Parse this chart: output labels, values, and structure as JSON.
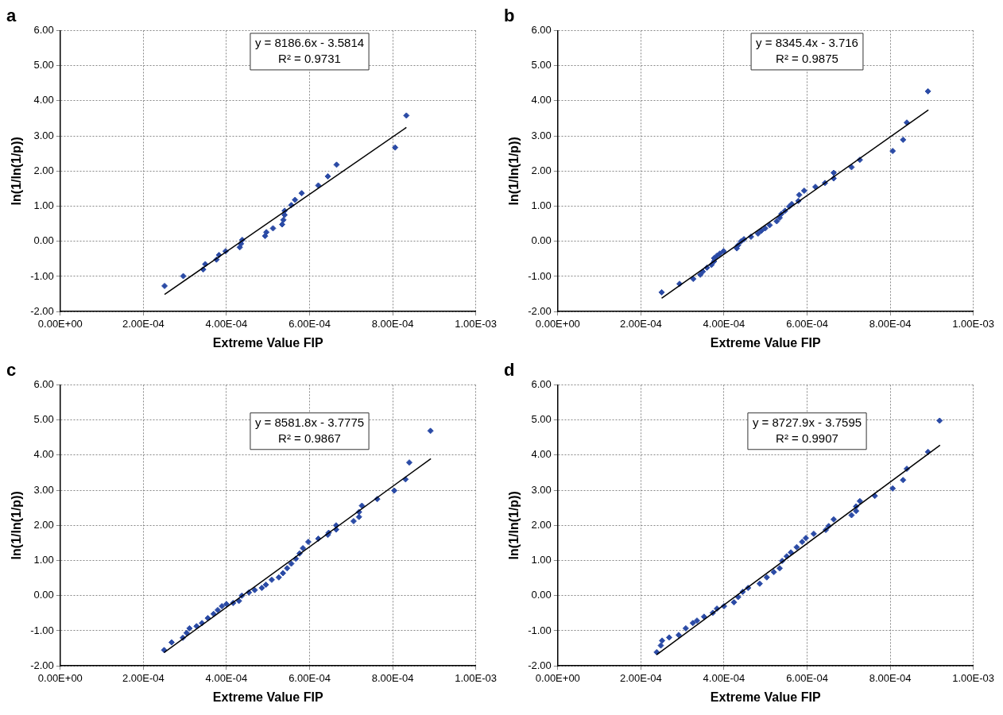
{
  "chart_data": [
    {
      "type": "scatter",
      "title": "a",
      "xlabel": "Extreme Value FIP",
      "ylabel": "ln(1/ln(1/p))",
      "annotations": [
        "y = 8186.6x - 3.5814",
        "R² = 0.9731"
      ],
      "xlim": [
        0,
        0.001
      ],
      "ylim": [
        -2,
        6
      ],
      "xticks": [
        {
          "value": 0,
          "label": "0.00E+00"
        },
        {
          "value": 0.0002,
          "label": "2.00E-04"
        },
        {
          "value": 0.0004,
          "label": "4.00E-04"
        },
        {
          "value": 0.0006,
          "label": "6.00E-04"
        },
        {
          "value": 0.0008,
          "label": "8.00E-04"
        },
        {
          "value": 0.001,
          "label": "1.00E-03"
        }
      ],
      "yticks": [
        {
          "value": -2,
          "label": "-2.00"
        },
        {
          "value": -1,
          "label": "-1.00"
        },
        {
          "value": 0,
          "label": "0.00"
        },
        {
          "value": 1,
          "label": "1.00"
        },
        {
          "value": 2,
          "label": "2.00"
        },
        {
          "value": 3,
          "label": "3.00"
        },
        {
          "value": 4,
          "label": "4.00"
        },
        {
          "value": 5,
          "label": "5.00"
        },
        {
          "value": 6,
          "label": "6.00"
        }
      ],
      "grid": true,
      "legend": false,
      "marker": "diamond",
      "series": [
        {
          "type": "scatter",
          "color": "#2b4ba6",
          "x": [
            0.000251,
            0.000296,
            0.000344,
            0.000349,
            0.000376,
            0.000382,
            0.000398,
            0.000432,
            0.000435,
            0.000438,
            0.000493,
            0.000496,
            0.000512,
            0.000534,
            0.000537,
            0.00054,
            0.00054,
            0.000556,
            0.000565,
            0.000581,
            0.000621,
            0.000644,
            0.000665,
            0.000806,
            0.000833
          ],
          "values": [
            -1.27,
            -0.99,
            -0.8,
            -0.65,
            -0.52,
            -0.39,
            -0.28,
            -0.17,
            -0.07,
            0.04,
            0.15,
            0.26,
            0.37,
            0.48,
            0.61,
            0.75,
            0.87,
            1.03,
            1.18,
            1.37,
            1.59,
            1.85,
            2.18,
            2.67,
            3.58
          ]
        },
        {
          "type": "line",
          "color": "#000000",
          "marker": "none",
          "x": [
            0.000251,
            0.000833
          ],
          "values": [
            -1.51,
            3.24
          ]
        }
      ]
    },
    {
      "type": "scatter",
      "title": "b",
      "xlabel": "Extreme Value FIP",
      "ylabel": "ln(1/ln(1/p))",
      "annotations": [
        "y = 8345.4x - 3.716",
        "R² = 0.9875"
      ],
      "xlim": [
        0,
        0.001
      ],
      "ylim": [
        -2,
        6
      ],
      "xticks": [
        {
          "value": 0,
          "label": "0.00E+00"
        },
        {
          "value": 0.0002,
          "label": "2.00E-04"
        },
        {
          "value": 0.0004,
          "label": "4.00E-04"
        },
        {
          "value": 0.0006,
          "label": "6.00E-04"
        },
        {
          "value": 0.0008,
          "label": "8.00E-04"
        },
        {
          "value": 0.001,
          "label": "1.00E-03"
        }
      ],
      "yticks": [
        {
          "value": -2,
          "label": "-2.00"
        },
        {
          "value": -1,
          "label": "-1.00"
        },
        {
          "value": 0,
          "label": "0.00"
        },
        {
          "value": 1,
          "label": "1.00"
        },
        {
          "value": 2,
          "label": "2.00"
        },
        {
          "value": 3,
          "label": "3.00"
        },
        {
          "value": 4,
          "label": "4.00"
        },
        {
          "value": 5,
          "label": "5.00"
        },
        {
          "value": 6,
          "label": "6.00"
        }
      ],
      "grid": true,
      "legend": false,
      "marker": "diamond",
      "series": [
        {
          "type": "scatter",
          "color": "#2b4ba6",
          "x": [
            0.00025,
            0.000293,
            0.000326,
            0.000343,
            0.000349,
            0.000359,
            0.00037,
            0.000376,
            0.000376,
            0.000383,
            0.00039,
            0.000399,
            0.000431,
            0.000434,
            0.000441,
            0.000448,
            0.000465,
            0.000482,
            0.00049,
            0.000499,
            0.00051,
            0.000527,
            0.000534,
            0.000538,
            0.000547,
            0.000557,
            0.000563,
            0.000579,
            0.000581,
            0.000593,
            0.00062,
            0.000643,
            0.000664,
            0.000664,
            0.000707,
            0.000727,
            0.000806,
            0.000831,
            0.00084,
            0.000891
          ],
          "values": [
            -1.45,
            -1.21,
            -1.07,
            -0.95,
            -0.86,
            -0.75,
            -0.67,
            -0.57,
            -0.48,
            -0.41,
            -0.35,
            -0.28,
            -0.2,
            -0.11,
            0.0,
            0.06,
            0.13,
            0.22,
            0.3,
            0.37,
            0.46,
            0.57,
            0.67,
            0.78,
            0.87,
            0.99,
            1.06,
            1.15,
            1.32,
            1.44,
            1.55,
            1.66,
            1.79,
            1.95,
            2.11,
            2.32,
            2.57,
            2.89,
            3.38,
            4.27
          ]
        },
        {
          "type": "line",
          "color": "#000000",
          "marker": "none",
          "x": [
            0.00025,
            0.000892
          ],
          "values": [
            -1.62,
            3.74
          ]
        }
      ]
    },
    {
      "type": "scatter",
      "title": "c",
      "xlabel": "Extreme Value FIP",
      "ylabel": "ln(1/ln(1/p))",
      "annotations": [
        "y = 8581.8x - 3.7775",
        "R² = 0.9867"
      ],
      "xlim": [
        0,
        0.001
      ],
      "ylim": [
        -2,
        6
      ],
      "xticks": [
        {
          "value": 0,
          "label": "0.00E+00"
        },
        {
          "value": 0.0002,
          "label": "2.00E-04"
        },
        {
          "value": 0.0004,
          "label": "4.00E-04"
        },
        {
          "value": 0.0006,
          "label": "6.00E-04"
        },
        {
          "value": 0.0008,
          "label": "8.00E-04"
        },
        {
          "value": 0.001,
          "label": "1.00E-03"
        }
      ],
      "yticks": [
        {
          "value": -2,
          "label": "-2.00"
        },
        {
          "value": -1,
          "label": "-1.00"
        },
        {
          "value": 0,
          "label": "0.00"
        },
        {
          "value": 1,
          "label": "1.00"
        },
        {
          "value": 2,
          "label": "2.00"
        },
        {
          "value": 3,
          "label": "3.00"
        },
        {
          "value": 4,
          "label": "4.00"
        },
        {
          "value": 5,
          "label": "5.00"
        },
        {
          "value": 6,
          "label": "6.00"
        }
      ],
      "grid": true,
      "legend": false,
      "marker": "diamond",
      "series": [
        {
          "type": "scatter",
          "color": "#2b4ba6",
          "x": [
            0.00025,
            0.000268,
            0.000295,
            0.000304,
            0.000311,
            0.000328,
            0.000341,
            0.000355,
            0.000369,
            0.000379,
            0.000389,
            0.0004,
            0.000416,
            0.00043,
            0.000437,
            0.000454,
            0.000468,
            0.000485,
            0.000495,
            0.000509,
            0.000526,
            0.000536,
            0.000546,
            0.000556,
            0.000567,
            0.000576,
            0.000584,
            0.000597,
            0.000621,
            0.000644,
            0.000646,
            0.000664,
            0.000664,
            0.000706,
            0.000719,
            0.000719,
            0.000726,
            0.000763,
            0.000804,
            0.000831,
            0.00084,
            0.000891
          ],
          "values": [
            -1.55,
            -1.33,
            -1.2,
            -1.06,
            -0.93,
            -0.87,
            -0.78,
            -0.64,
            -0.52,
            -0.41,
            -0.3,
            -0.24,
            -0.21,
            -0.15,
            0.0,
            0.09,
            0.16,
            0.22,
            0.31,
            0.45,
            0.52,
            0.64,
            0.78,
            0.91,
            1.05,
            1.2,
            1.35,
            1.53,
            1.62,
            1.73,
            1.79,
            1.88,
            2.0,
            2.12,
            2.24,
            2.38,
            2.56,
            2.75,
            2.99,
            3.31,
            3.79,
            4.69
          ]
        },
        {
          "type": "line",
          "color": "#000000",
          "marker": "none",
          "x": [
            0.00025,
            0.000892
          ],
          "values": [
            -1.62,
            3.9
          ]
        }
      ]
    },
    {
      "type": "scatter",
      "title": "d",
      "xlabel": "Extreme Value FIP",
      "ylabel": "ln(1/ln(1/p))",
      "annotations": [
        "y = 8727.9x - 3.7595",
        "R² = 0.9907"
      ],
      "xlim": [
        0,
        0.001
      ],
      "ylim": [
        -2,
        6
      ],
      "xticks": [
        {
          "value": 0,
          "label": "0.00E+00"
        },
        {
          "value": 0.0002,
          "label": "2.00E-04"
        },
        {
          "value": 0.0004,
          "label": "4.00E-04"
        },
        {
          "value": 0.0006,
          "label": "6.00E-04"
        },
        {
          "value": 0.0008,
          "label": "8.00E-04"
        },
        {
          "value": 0.001,
          "label": "1.00E-03"
        }
      ],
      "yticks": [
        {
          "value": -2,
          "label": "-2.00"
        },
        {
          "value": -1,
          "label": "-1.00"
        },
        {
          "value": 0,
          "label": "0.00"
        },
        {
          "value": 1,
          "label": "1.00"
        },
        {
          "value": 2,
          "label": "2.00"
        },
        {
          "value": 3,
          "label": "3.00"
        },
        {
          "value": 4,
          "label": "4.00"
        },
        {
          "value": 5,
          "label": "5.00"
        },
        {
          "value": 6,
          "label": "6.00"
        }
      ],
      "grid": true,
      "legend": false,
      "marker": "diamond",
      "series": [
        {
          "type": "scatter",
          "color": "#2b4ba6",
          "x": [
            0.000238,
            0.000248,
            0.000251,
            0.000268,
            0.000291,
            0.000308,
            0.000325,
            0.000335,
            0.000352,
            0.000373,
            0.000383,
            0.0004,
            0.000424,
            0.000434,
            0.000445,
            0.000458,
            0.000486,
            0.000503,
            0.00052,
            0.000534,
            0.00054,
            0.000551,
            0.000561,
            0.000575,
            0.000588,
            0.000597,
            0.000616,
            0.000645,
            0.000652,
            0.000664,
            0.000707,
            0.000718,
            0.000718,
            0.000727,
            0.000763,
            0.000806,
            0.000831,
            0.00084,
            0.000891,
            0.000919
          ],
          "values": [
            -1.61,
            -1.42,
            -1.28,
            -1.19,
            -1.12,
            -0.93,
            -0.78,
            -0.71,
            -0.6,
            -0.49,
            -0.37,
            -0.3,
            -0.19,
            -0.04,
            0.11,
            0.22,
            0.34,
            0.52,
            0.67,
            0.78,
            0.99,
            1.12,
            1.23,
            1.38,
            1.53,
            1.64,
            1.76,
            1.87,
            1.98,
            2.17,
            2.29,
            2.41,
            2.54,
            2.69,
            2.84,
            3.05,
            3.29,
            3.61,
            4.09,
            4.98
          ]
        },
        {
          "type": "line",
          "color": "#000000",
          "marker": "none",
          "x": [
            0.000238,
            0.00092
          ],
          "values": [
            -1.68,
            4.28
          ]
        }
      ]
    }
  ]
}
